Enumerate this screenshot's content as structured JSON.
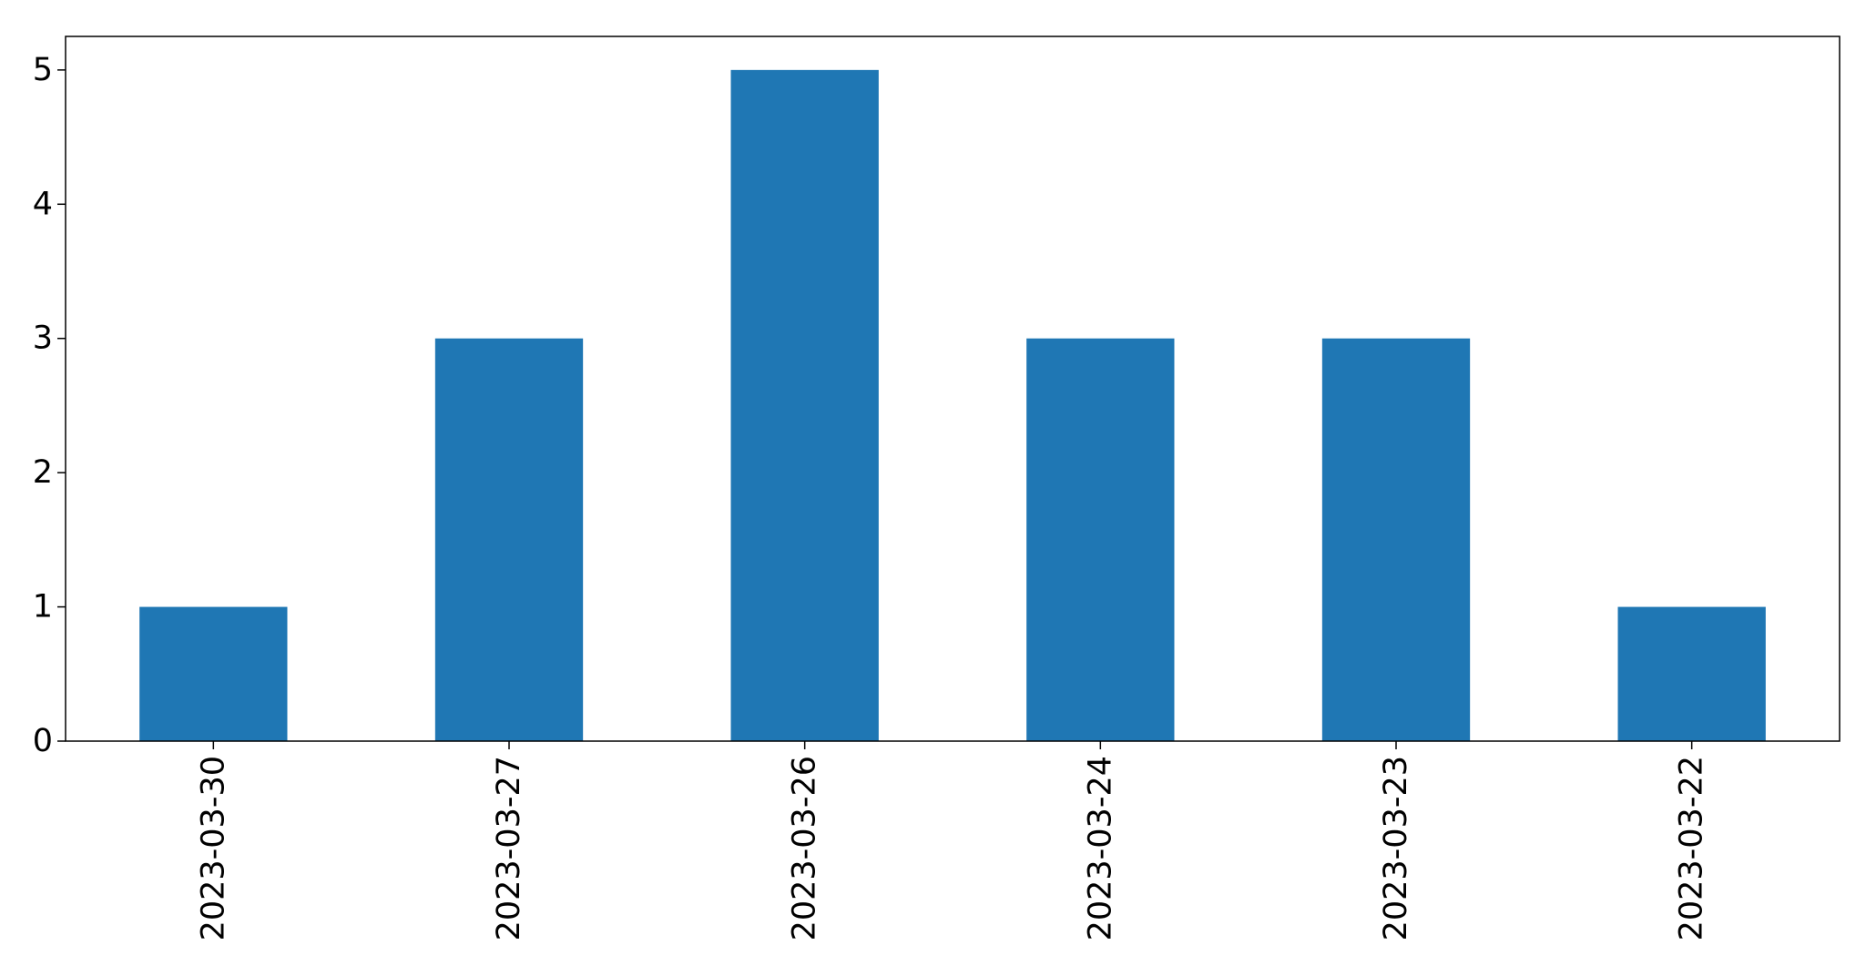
{
  "chart_data": {
    "type": "bar",
    "title": "",
    "xlabel": "",
    "ylabel": "",
    "categories": [
      "2023-03-30",
      "2023-03-27",
      "2023-03-26",
      "2023-03-24",
      "2023-03-23",
      "2023-03-22"
    ],
    "values": [
      1,
      3,
      5,
      3,
      3,
      1
    ],
    "ylim": [
      0,
      5.25
    ],
    "yticks": [
      0,
      1,
      2,
      3,
      4,
      5
    ],
    "ytick_labels": [
      "0",
      "1",
      "2",
      "3",
      "4",
      "5"
    ],
    "bar_color": "#1f77b4",
    "grid": false,
    "legend": false
  }
}
